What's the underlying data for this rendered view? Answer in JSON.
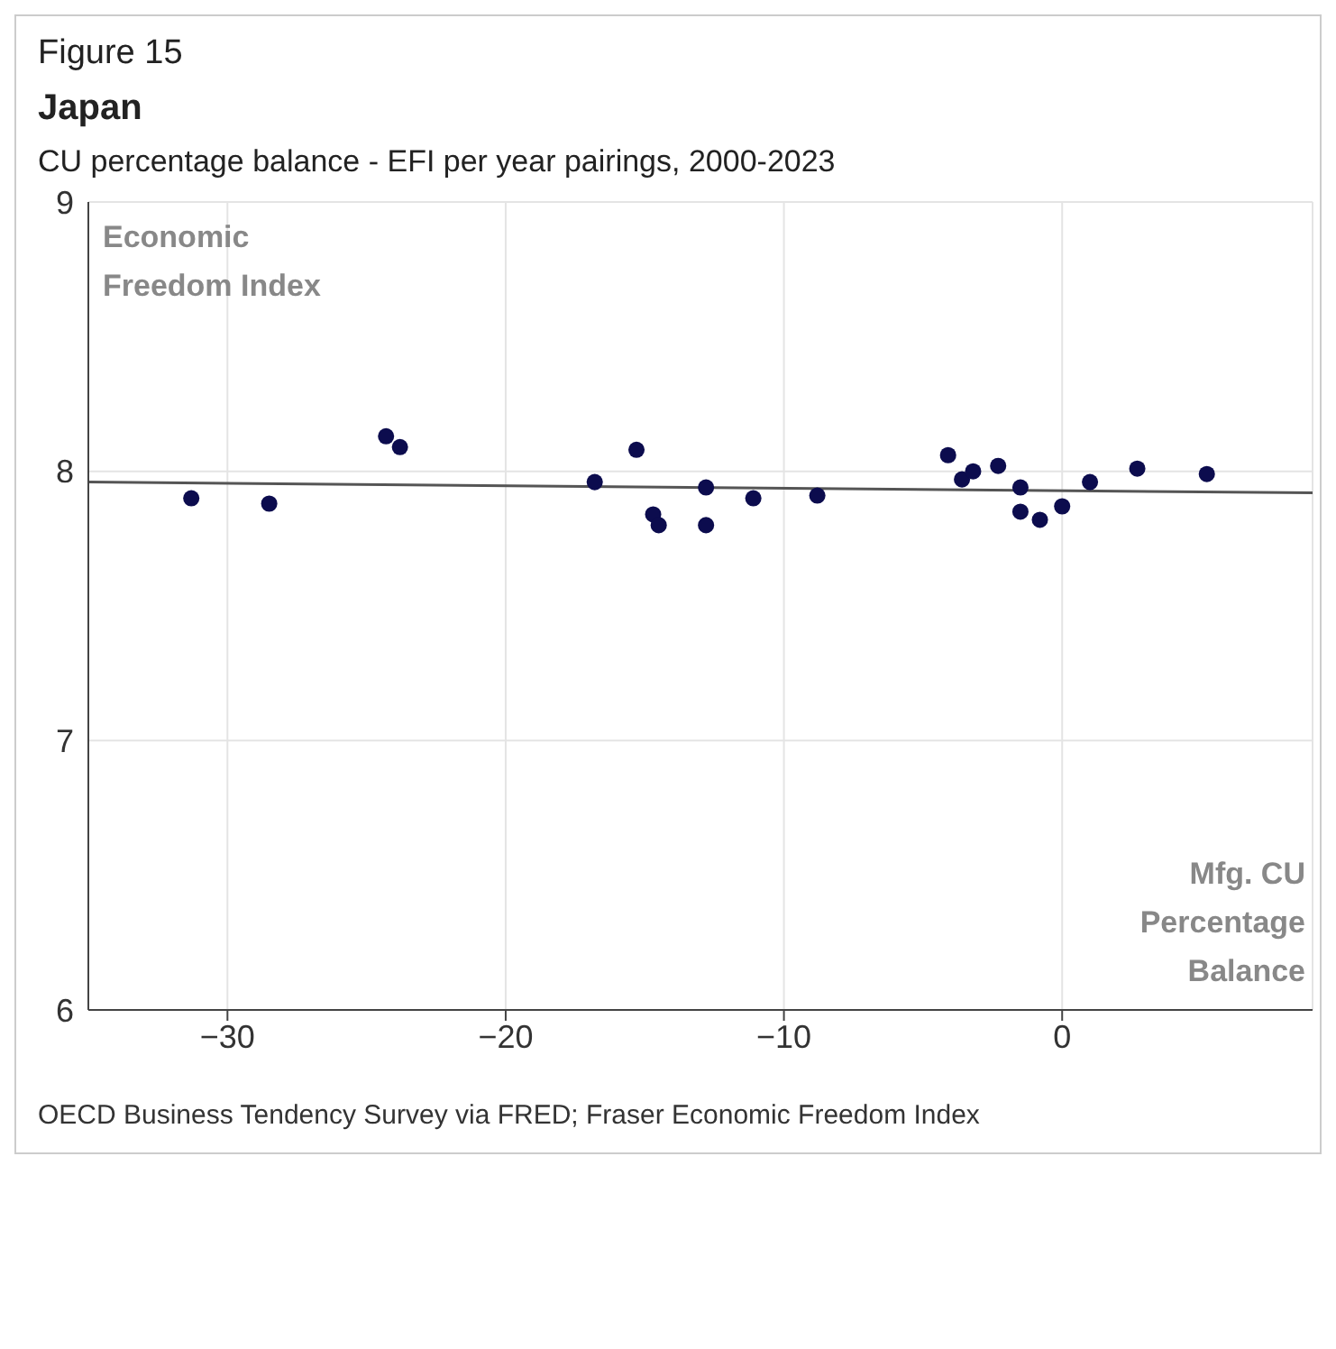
{
  "chart_data": {
    "type": "scatter",
    "title": "Japan",
    "subtitle": "CU percentage balance - EFI per year pairings, 2000-2023",
    "xlabel": "Mfg. CU Percentage Balance",
    "ylabel": "Economic Freedom Index",
    "annotations": [
      "Figure 15",
      "OECD Business Tendency Survey via FRED; Fraser Economic Freedom Index"
    ],
    "series": [
      {
        "marker": "circle",
        "color": "#0c0c4e",
        "x": [
          -31.3,
          -28.5,
          -24.3,
          -23.8,
          -16.8,
          -15.3,
          -14.7,
          -14.5,
          -12.8,
          -12.8,
          -11.1,
          -8.8,
          -4.1,
          -3.6,
          -3.2,
          -2.3,
          -1.5,
          -1.5,
          -0.8,
          0,
          1.0,
          2.7,
          5.2
        ],
        "values": [
          7.9,
          7.88,
          8.13,
          8.09,
          7.96,
          8.08,
          7.84,
          7.8,
          7.94,
          7.8,
          7.9,
          7.91,
          8.06,
          7.97,
          8.0,
          8.02,
          7.94,
          7.85,
          7.82,
          7.87,
          7.96,
          8.01,
          7.99
        ]
      },
      {
        "type": "line",
        "marker": "none",
        "color": "#555555",
        "x": [
          -35,
          9
        ],
        "values": [
          7.96,
          7.92
        ]
      }
    ],
    "xlim": [
      -35,
      9
    ],
    "xticks": [
      -30,
      -20,
      -10,
      0
    ],
    "ylim": [
      6,
      9
    ],
    "yticks": [
      6,
      7,
      8,
      9
    ],
    "grid": true,
    "line_style": "solid"
  }
}
